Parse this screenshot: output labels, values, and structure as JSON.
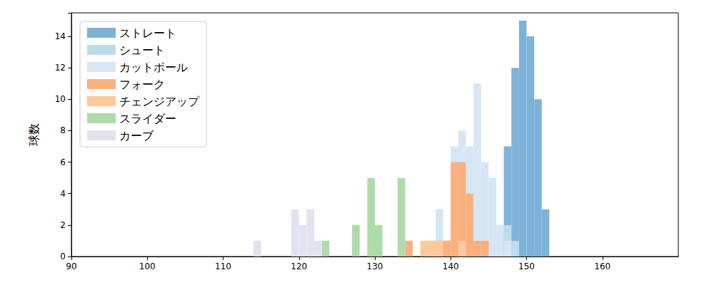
{
  "chart_data": {
    "type": "histogram",
    "y_label": "球数",
    "bins": [
      114,
      115,
      116,
      117,
      118,
      119,
      120,
      121,
      122,
      123,
      124,
      125,
      126,
      127,
      128,
      129,
      130,
      131,
      132,
      133,
      134,
      135,
      136,
      137,
      138,
      139,
      140,
      141,
      142,
      143,
      144,
      145,
      146,
      147,
      148,
      149,
      150,
      151,
      152,
      153
    ],
    "series": [
      {
        "name": "ストレート",
        "color": "#7fb2d9",
        "values": [
          0,
          0,
          0,
          0,
          0,
          0,
          0,
          0,
          0,
          0,
          0,
          0,
          0,
          0,
          0,
          0,
          0,
          0,
          0,
          0,
          0,
          0,
          0,
          0,
          0,
          0,
          0,
          0,
          0,
          0,
          0,
          1,
          2,
          7,
          12,
          15,
          14,
          10,
          3
        ]
      },
      {
        "name": "シュート",
        "color": "#bcdcea",
        "values": [
          0,
          0,
          0,
          0,
          0,
          0,
          0,
          0,
          0,
          0,
          0,
          0,
          0,
          0,
          0,
          0,
          0,
          0,
          0,
          0,
          0,
          0,
          0,
          0,
          0,
          0,
          0,
          0,
          0,
          0,
          0,
          1,
          2,
          2,
          1,
          0,
          0,
          0,
          0
        ]
      },
      {
        "name": "カットボール",
        "color": "#d6e6f4",
        "values": [
          0,
          0,
          0,
          0,
          0,
          0,
          0,
          0,
          0,
          0,
          0,
          0,
          0,
          0,
          0,
          0,
          0,
          0,
          0,
          0,
          0,
          0,
          0,
          0,
          3,
          1,
          7,
          8,
          7,
          11,
          6,
          5,
          2,
          1,
          0,
          0,
          0,
          0,
          0
        ]
      },
      {
        "name": "フォーク",
        "color": "#f9b07e",
        "values": [
          0,
          0,
          0,
          0,
          0,
          0,
          0,
          0,
          0,
          0,
          0,
          0,
          0,
          0,
          0,
          0,
          0,
          0,
          0,
          0,
          1,
          0,
          0,
          1,
          1,
          1,
          6,
          6,
          4,
          1,
          1,
          0,
          0,
          0,
          0,
          0,
          0,
          0,
          0
        ]
      },
      {
        "name": "チェンジアップ",
        "color": "#fcc99c",
        "values": [
          0,
          0,
          0,
          0,
          0,
          0,
          0,
          0,
          0,
          0,
          0,
          0,
          0,
          0,
          0,
          0,
          0,
          0,
          0,
          0,
          0,
          0,
          1,
          1,
          1,
          0,
          0,
          1,
          0,
          0,
          0,
          0,
          0,
          0,
          0,
          0,
          0,
          0,
          0
        ]
      },
      {
        "name": "スライダー",
        "color": "#addbaa",
        "values": [
          0,
          0,
          0,
          0,
          0,
          0,
          0,
          0,
          0,
          1,
          0,
          0,
          0,
          2,
          0,
          5,
          2,
          0,
          0,
          5,
          0,
          0,
          0,
          0,
          0,
          0,
          0,
          0,
          0,
          0,
          0,
          0,
          0,
          0,
          0,
          0,
          0,
          0,
          0
        ]
      },
      {
        "name": "カーブ",
        "color": "#e3e2ef",
        "values": [
          1,
          0,
          0,
          0,
          0,
          3,
          2,
          3,
          1,
          0,
          0,
          0,
          0,
          0,
          0,
          0,
          0,
          0,
          0,
          0,
          0,
          0,
          0,
          0,
          0,
          0,
          0,
          0,
          0,
          0,
          0,
          0,
          0,
          0,
          0,
          0,
          0,
          0,
          0
        ]
      }
    ],
    "xlim": [
      90,
      170
    ],
    "xticks": [
      90,
      100,
      110,
      120,
      130,
      140,
      150,
      160
    ],
    "ylim": [
      0,
      15.5
    ],
    "yticks": [
      0,
      2,
      4,
      6,
      8,
      10,
      12,
      14
    ],
    "legend": "upper left",
    "grid": false
  }
}
